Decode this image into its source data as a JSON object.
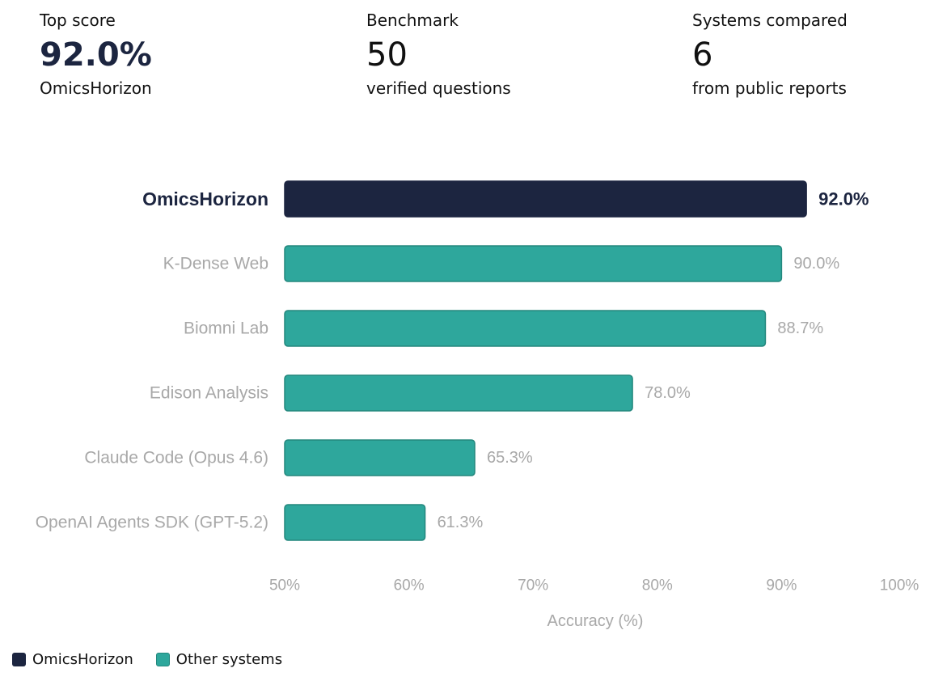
{
  "stats": [
    {
      "label": "Top score",
      "value": "92.0%",
      "sub": "OmicsHorizon"
    },
    {
      "label": "Benchmark",
      "value": "50",
      "sub": "verified questions"
    },
    {
      "label": "Systems compared",
      "value": "6",
      "sub": "from public reports"
    }
  ],
  "colors": {
    "highlight": "#1c2540",
    "other": "#2ea79c",
    "other_border": "#23877d",
    "muted_text": "#a8a8a8",
    "highlight_text": "#1c2540"
  },
  "chart_data": {
    "type": "bar",
    "orientation": "horizontal",
    "categories": [
      "OmicsHorizon",
      "K-Dense Web",
      "Biomni Lab",
      "Edison Analysis",
      "Claude Code (Opus 4.6)",
      "OpenAI Agents SDK (GPT-5.2)"
    ],
    "values": [
      92.0,
      90.0,
      88.7,
      78.0,
      65.3,
      61.3
    ],
    "data_labels": [
      "92.0%",
      "90.0%",
      "88.7%",
      "78.0%",
      "65.3%",
      "61.3%"
    ],
    "highlight": [
      true,
      false,
      false,
      false,
      false,
      false
    ],
    "xlim": [
      50,
      100
    ],
    "xticks": [
      50,
      60,
      70,
      80,
      90,
      100
    ],
    "xtick_labels": [
      "50%",
      "60%",
      "70%",
      "80%",
      "90%",
      "100%"
    ],
    "xlabel": "Accuracy (%)",
    "grid": false,
    "legend_position": "bottom-left",
    "legend": [
      {
        "label": "OmicsHorizon",
        "color": "#1c2540"
      },
      {
        "label": "Other systems",
        "color": "#2ea79c"
      }
    ]
  }
}
